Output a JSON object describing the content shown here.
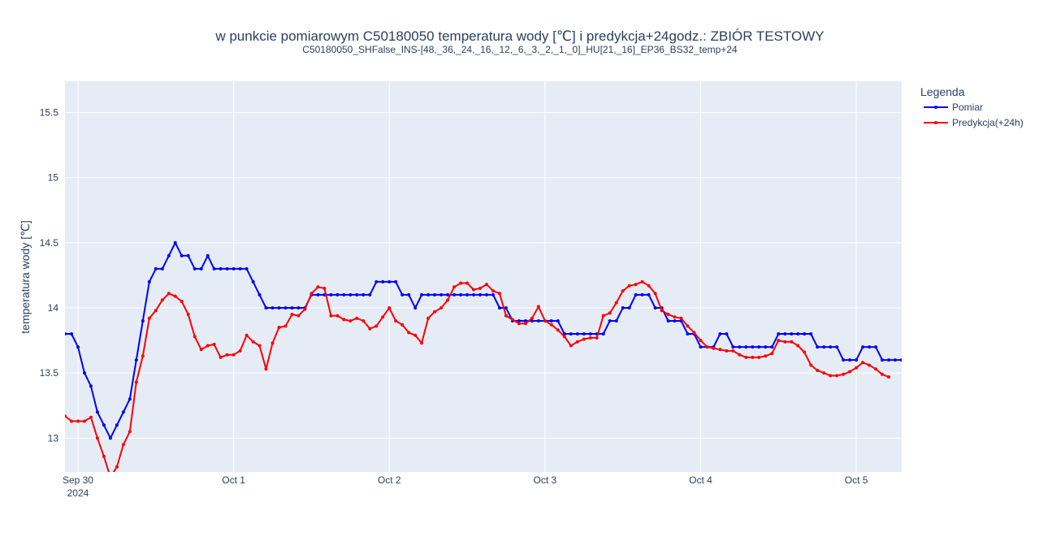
{
  "chart_data": {
    "type": "line",
    "title": "w punkcie pomiarowym C50180050 temperatura wody [℃] i predykcja+24godz.: ZBIÓR TESTOWY",
    "subtitle": "C50180050_SHFalse_INS-[48,_36,_24,_16,_12,_6,_3,_2,_1,_0]_HU[21,_16]_EP36_BS32_temp+24",
    "ylabel": "temperatura wody [℃]",
    "xlabel": "",
    "x_start": "2024-09-29 22:00",
    "x_step_hours": 1,
    "xlim": [
      "2024-09-29 22:00",
      "2024-10-05 07:00"
    ],
    "ylim": [
      12.74,
      15.74
    ],
    "x_ticks": [
      {
        "date": "2024-09-30",
        "label": "Sep 30",
        "sublabel": "2024"
      },
      {
        "date": "2024-10-01",
        "label": "Oct 1",
        "sublabel": ""
      },
      {
        "date": "2024-10-02",
        "label": "Oct 2",
        "sublabel": ""
      },
      {
        "date": "2024-10-03",
        "label": "Oct 3",
        "sublabel": ""
      },
      {
        "date": "2024-10-04",
        "label": "Oct 4",
        "sublabel": ""
      },
      {
        "date": "2024-10-05",
        "label": "Oct 5",
        "sublabel": ""
      }
    ],
    "y_ticks": [
      {
        "value": 13,
        "label": "13"
      },
      {
        "value": 13.5,
        "label": "13.5"
      },
      {
        "value": 14,
        "label": "14"
      },
      {
        "value": 14.5,
        "label": "14.5"
      },
      {
        "value": 15,
        "label": "15"
      },
      {
        "value": 15.5,
        "label": "15.5"
      }
    ],
    "legend": {
      "title": "Legenda",
      "position": "top-right"
    },
    "grid": true,
    "background_color": "#e5ecf6",
    "series": [
      {
        "name": "Pomiar",
        "color": "#0000ff",
        "values": [
          13.8,
          13.8,
          13.7,
          13.5,
          13.4,
          13.2,
          13.1,
          13.0,
          13.1,
          13.2,
          13.3,
          13.6,
          13.9,
          14.2,
          14.3,
          14.3,
          14.4,
          14.5,
          14.4,
          14.4,
          14.3,
          14.3,
          14.4,
          14.3,
          14.3,
          14.3,
          14.3,
          14.3,
          14.3,
          14.2,
          14.1,
          14.0,
          14.0,
          14.0,
          14.0,
          14.0,
          14.0,
          14.0,
          14.1,
          14.1,
          14.1,
          14.1,
          14.1,
          14.1,
          14.1,
          14.1,
          14.1,
          14.1,
          14.2,
          14.2,
          14.2,
          14.2,
          14.1,
          14.1,
          14.0,
          14.1,
          14.1,
          14.1,
          14.1,
          14.1,
          14.1,
          14.1,
          14.1,
          14.1,
          14.1,
          14.1,
          14.1,
          14.0,
          14.0,
          13.9,
          13.9,
          13.9,
          13.9,
          13.9,
          13.9,
          13.9,
          13.9,
          13.8,
          13.8,
          13.8,
          13.8,
          13.8,
          13.8,
          13.8,
          13.9,
          13.9,
          14.0,
          14.0,
          14.1,
          14.1,
          14.1,
          14.0,
          14.0,
          13.9,
          13.9,
          13.9,
          13.8,
          13.8,
          13.7,
          13.7,
          13.7,
          13.8,
          13.8,
          13.7,
          13.7,
          13.7,
          13.7,
          13.7,
          13.7,
          13.7,
          13.8,
          13.8,
          13.8,
          13.8,
          13.8,
          13.8,
          13.7,
          13.7,
          13.7,
          13.7,
          13.6,
          13.6,
          13.6,
          13.7,
          13.7,
          13.7,
          13.6,
          13.6,
          13.6,
          13.6
        ]
      },
      {
        "name": "Predykcja(+24h)",
        "color": "#ff0000",
        "values": [
          13.17,
          13.13,
          13.13,
          13.13,
          13.16,
          13.0,
          12.86,
          12.7,
          12.78,
          12.95,
          13.05,
          13.43,
          13.63,
          13.92,
          13.98,
          14.06,
          14.11,
          14.09,
          14.05,
          13.95,
          13.78,
          13.68,
          13.71,
          13.72,
          13.62,
          13.64,
          13.64,
          13.67,
          13.79,
          13.74,
          13.71,
          13.53,
          13.73,
          13.85,
          13.86,
          13.95,
          13.94,
          13.99,
          14.11,
          14.16,
          14.15,
          13.94,
          13.94,
          13.91,
          13.9,
          13.92,
          13.9,
          13.84,
          13.86,
          13.93,
          14.0,
          13.9,
          13.87,
          13.81,
          13.79,
          13.73,
          13.92,
          13.97,
          14.0,
          14.06,
          14.16,
          14.19,
          14.19,
          14.14,
          14.15,
          14.18,
          14.13,
          14.11,
          13.94,
          13.91,
          13.88,
          13.88,
          13.92,
          14.01,
          13.9,
          13.87,
          13.83,
          13.78,
          13.71,
          13.74,
          13.76,
          13.77,
          13.77,
          13.94,
          13.96,
          14.04,
          14.13,
          14.17,
          14.18,
          14.2,
          14.17,
          14.11,
          13.98,
          13.95,
          13.93,
          13.92,
          13.86,
          13.81,
          13.75,
          13.7,
          13.69,
          13.68,
          13.67,
          13.67,
          13.64,
          13.62,
          13.62,
          13.62,
          13.63,
          13.65,
          13.75,
          13.74,
          13.74,
          13.71,
          13.66,
          13.56,
          13.52,
          13.5,
          13.48,
          13.48,
          13.49,
          13.51,
          13.54,
          13.58,
          13.56,
          13.53,
          13.49,
          13.47
        ]
      }
    ]
  }
}
